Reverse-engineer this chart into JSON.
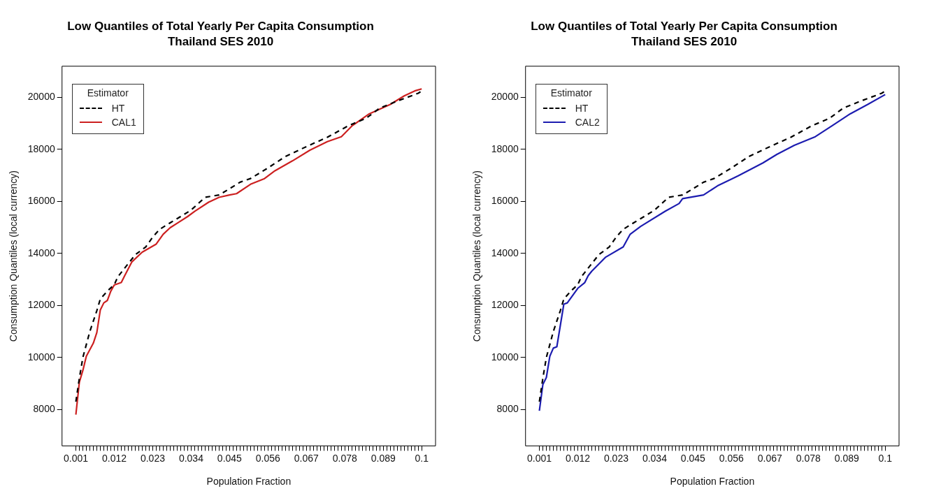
{
  "chart_data": [
    {
      "type": "line",
      "title": "Low Quantiles of Total Yearly Per Capita Consumption",
      "subtitle": "Thailand SES 2010",
      "xlabel": "Population Fraction",
      "ylabel": "Consumption Quantiles (local currency)",
      "legend_title": "Estimator",
      "legend": "top left",
      "marker": "none",
      "xlim": [
        -0.00296,
        0.10396
      ],
      "xticks": [
        0.001,
        {
          "value": 0.002,
          "label": null
        },
        {
          "value": 0.003,
          "label": null
        },
        {
          "value": 0.004,
          "label": null
        },
        {
          "value": 0.005,
          "label": null
        },
        {
          "value": 0.006,
          "label": null
        },
        {
          "value": 0.007,
          "label": null
        },
        {
          "value": 0.008,
          "label": null
        },
        {
          "value": 0.009,
          "label": null
        },
        {
          "value": 0.01,
          "label": null
        },
        {
          "value": 0.011,
          "label": null
        },
        0.012,
        {
          "value": 0.013,
          "label": null
        },
        {
          "value": 0.014,
          "label": null
        },
        {
          "value": 0.015,
          "label": null
        },
        {
          "value": 0.016,
          "label": null
        },
        {
          "value": 0.017,
          "label": null
        },
        {
          "value": 0.018,
          "label": null
        },
        {
          "value": 0.019,
          "label": null
        },
        {
          "value": 0.02,
          "label": null
        },
        {
          "value": 0.021,
          "label": null
        },
        {
          "value": 0.022,
          "label": null
        },
        0.023,
        {
          "value": 0.024,
          "label": null
        },
        {
          "value": 0.025,
          "label": null
        },
        {
          "value": 0.026,
          "label": null
        },
        {
          "value": 0.027,
          "label": null
        },
        {
          "value": 0.028,
          "label": null
        },
        {
          "value": 0.029,
          "label": null
        },
        {
          "value": 0.03,
          "label": null
        },
        {
          "value": 0.031,
          "label": null
        },
        {
          "value": 0.032,
          "label": null
        },
        {
          "value": 0.033,
          "label": null
        },
        0.034,
        {
          "value": 0.035,
          "label": null
        },
        {
          "value": 0.036,
          "label": null
        },
        {
          "value": 0.037,
          "label": null
        },
        {
          "value": 0.038,
          "label": null
        },
        {
          "value": 0.039,
          "label": null
        },
        {
          "value": 0.04,
          "label": null
        },
        {
          "value": 0.041,
          "label": null
        },
        {
          "value": 0.042,
          "label": null
        },
        {
          "value": 0.043,
          "label": null
        },
        {
          "value": 0.044,
          "label": null
        },
        0.045,
        {
          "value": 0.046,
          "label": null
        },
        {
          "value": 0.047,
          "label": null
        },
        {
          "value": 0.048,
          "label": null
        },
        {
          "value": 0.049,
          "label": null
        },
        {
          "value": 0.05,
          "label": null
        },
        {
          "value": 0.051,
          "label": null
        },
        {
          "value": 0.052,
          "label": null
        },
        {
          "value": 0.053,
          "label": null
        },
        {
          "value": 0.054,
          "label": null
        },
        {
          "value": 0.055,
          "label": null
        },
        0.056,
        {
          "value": 0.057,
          "label": null
        },
        {
          "value": 0.058,
          "label": null
        },
        {
          "value": 0.059,
          "label": null
        },
        {
          "value": 0.06,
          "label": null
        },
        {
          "value": 0.061,
          "label": null
        },
        {
          "value": 0.062,
          "label": null
        },
        {
          "value": 0.063,
          "label": null
        },
        {
          "value": 0.064,
          "label": null
        },
        {
          "value": 0.065,
          "label": null
        },
        {
          "value": 0.066,
          "label": null
        },
        0.067,
        {
          "value": 0.068,
          "label": null
        },
        {
          "value": 0.069,
          "label": null
        },
        {
          "value": 0.07,
          "label": null
        },
        {
          "value": 0.071,
          "label": null
        },
        {
          "value": 0.072,
          "label": null
        },
        {
          "value": 0.073,
          "label": null
        },
        {
          "value": 0.074,
          "label": null
        },
        {
          "value": 0.075,
          "label": null
        },
        {
          "value": 0.076,
          "label": null
        },
        {
          "value": 0.077,
          "label": null
        },
        0.078,
        {
          "value": 0.079,
          "label": null
        },
        {
          "value": 0.08,
          "label": null
        },
        {
          "value": 0.081,
          "label": null
        },
        {
          "value": 0.082,
          "label": null
        },
        {
          "value": 0.083,
          "label": null
        },
        {
          "value": 0.084,
          "label": null
        },
        {
          "value": 0.085,
          "label": null
        },
        {
          "value": 0.086,
          "label": null
        },
        {
          "value": 0.087,
          "label": null
        },
        {
          "value": 0.088,
          "label": null
        },
        0.089,
        {
          "value": 0.09,
          "label": null
        },
        {
          "value": 0.091,
          "label": null
        },
        {
          "value": 0.092,
          "label": null
        },
        {
          "value": 0.093,
          "label": null
        },
        {
          "value": 0.094,
          "label": null
        },
        {
          "value": 0.095,
          "label": null
        },
        {
          "value": 0.096,
          "label": null
        },
        {
          "value": 0.097,
          "label": null
        },
        {
          "value": 0.098,
          "label": null
        },
        {
          "value": 0.099,
          "label": null
        },
        0.1
      ],
      "ylim": [
        6600,
        21200
      ],
      "yticks": [
        8000,
        10000,
        12000,
        14000,
        16000,
        18000,
        20000
      ],
      "series": [
        {
          "name": "HT",
          "color": "#000000",
          "line_style": "dashed",
          "x": [
            0.001,
            0.002,
            0.003,
            0.005,
            0.006,
            0.007,
            0.008,
            0.01,
            0.012,
            0.013,
            0.018,
            0.021,
            0.023,
            0.025,
            0.028,
            0.031,
            0.034,
            0.038,
            0.042,
            0.045,
            0.048,
            0.051,
            0.056,
            0.061,
            0.067,
            0.073,
            0.079,
            0.084,
            0.088,
            0.093,
            0.099,
            0.1
          ],
          "values": [
            8300,
            9200,
            10000,
            11000,
            11400,
            11800,
            12250,
            12550,
            12800,
            13100,
            13950,
            14250,
            14630,
            14930,
            15180,
            15420,
            15670,
            16160,
            16250,
            16490,
            16740,
            16880,
            17290,
            17730,
            18110,
            18470,
            18910,
            19190,
            19590,
            19860,
            20160,
            20250
          ]
        },
        {
          "name": "CAL1",
          "color": "#cc2020",
          "line_style": "solid",
          "x": [
            0.001,
            0.002,
            0.003,
            0.004,
            0.006,
            0.007,
            0.008,
            0.009,
            0.01,
            0.011,
            0.012,
            0.014,
            0.015,
            0.017,
            0.02,
            0.024,
            0.026,
            0.028,
            0.033,
            0.035,
            0.039,
            0.042,
            0.045,
            0.047,
            0.051,
            0.055,
            0.058,
            0.063,
            0.068,
            0.073,
            0.077,
            0.08,
            0.085,
            0.091,
            0.095,
            0.098,
            0.1
          ],
          "values": [
            7800,
            9050,
            9500,
            10050,
            10550,
            10960,
            11830,
            12100,
            12190,
            12550,
            12790,
            12880,
            13150,
            13670,
            14050,
            14360,
            14740,
            14990,
            15420,
            15620,
            15970,
            16160,
            16250,
            16300,
            16660,
            16880,
            17180,
            17560,
            17970,
            18300,
            18490,
            18900,
            19370,
            19730,
            20060,
            20250,
            20330
          ]
        }
      ]
    },
    {
      "type": "line",
      "title": "Low Quantiles of Total Yearly Per Capita Consumption",
      "subtitle": "Thailand SES 2010",
      "xlabel": "Population Fraction",
      "ylabel": "Consumption Quantiles (local currency)",
      "legend_title": "Estimator",
      "legend": "top left",
      "marker": "none",
      "xlim": [
        -0.00296,
        0.10396
      ],
      "xticks": [
        0.001,
        {
          "value": 0.002,
          "label": null
        },
        {
          "value": 0.003,
          "label": null
        },
        {
          "value": 0.004,
          "label": null
        },
        {
          "value": 0.005,
          "label": null
        },
        {
          "value": 0.006,
          "label": null
        },
        {
          "value": 0.007,
          "label": null
        },
        {
          "value": 0.008,
          "label": null
        },
        {
          "value": 0.009,
          "label": null
        },
        {
          "value": 0.01,
          "label": null
        },
        {
          "value": 0.011,
          "label": null
        },
        0.012,
        {
          "value": 0.013,
          "label": null
        },
        {
          "value": 0.014,
          "label": null
        },
        {
          "value": 0.015,
          "label": null
        },
        {
          "value": 0.016,
          "label": null
        },
        {
          "value": 0.017,
          "label": null
        },
        {
          "value": 0.018,
          "label": null
        },
        {
          "value": 0.019,
          "label": null
        },
        {
          "value": 0.02,
          "label": null
        },
        {
          "value": 0.021,
          "label": null
        },
        {
          "value": 0.022,
          "label": null
        },
        0.023,
        {
          "value": 0.024,
          "label": null
        },
        {
          "value": 0.025,
          "label": null
        },
        {
          "value": 0.026,
          "label": null
        },
        {
          "value": 0.027,
          "label": null
        },
        {
          "value": 0.028,
          "label": null
        },
        {
          "value": 0.029,
          "label": null
        },
        {
          "value": 0.03,
          "label": null
        },
        {
          "value": 0.031,
          "label": null
        },
        {
          "value": 0.032,
          "label": null
        },
        {
          "value": 0.033,
          "label": null
        },
        0.034,
        {
          "value": 0.035,
          "label": null
        },
        {
          "value": 0.036,
          "label": null
        },
        {
          "value": 0.037,
          "label": null
        },
        {
          "value": 0.038,
          "label": null
        },
        {
          "value": 0.039,
          "label": null
        },
        {
          "value": 0.04,
          "label": null
        },
        {
          "value": 0.041,
          "label": null
        },
        {
          "value": 0.042,
          "label": null
        },
        {
          "value": 0.043,
          "label": null
        },
        {
          "value": 0.044,
          "label": null
        },
        0.045,
        {
          "value": 0.046,
          "label": null
        },
        {
          "value": 0.047,
          "label": null
        },
        {
          "value": 0.048,
          "label": null
        },
        {
          "value": 0.049,
          "label": null
        },
        {
          "value": 0.05,
          "label": null
        },
        {
          "value": 0.051,
          "label": null
        },
        {
          "value": 0.052,
          "label": null
        },
        {
          "value": 0.053,
          "label": null
        },
        {
          "value": 0.054,
          "label": null
        },
        {
          "value": 0.055,
          "label": null
        },
        0.056,
        {
          "value": 0.057,
          "label": null
        },
        {
          "value": 0.058,
          "label": null
        },
        {
          "value": 0.059,
          "label": null
        },
        {
          "value": 0.06,
          "label": null
        },
        {
          "value": 0.061,
          "label": null
        },
        {
          "value": 0.062,
          "label": null
        },
        {
          "value": 0.063,
          "label": null
        },
        {
          "value": 0.064,
          "label": null
        },
        {
          "value": 0.065,
          "label": null
        },
        {
          "value": 0.066,
          "label": null
        },
        0.067,
        {
          "value": 0.068,
          "label": null
        },
        {
          "value": 0.069,
          "label": null
        },
        {
          "value": 0.07,
          "label": null
        },
        {
          "value": 0.071,
          "label": null
        },
        {
          "value": 0.072,
          "label": null
        },
        {
          "value": 0.073,
          "label": null
        },
        {
          "value": 0.074,
          "label": null
        },
        {
          "value": 0.075,
          "label": null
        },
        {
          "value": 0.076,
          "label": null
        },
        {
          "value": 0.077,
          "label": null
        },
        0.078,
        {
          "value": 0.079,
          "label": null
        },
        {
          "value": 0.08,
          "label": null
        },
        {
          "value": 0.081,
          "label": null
        },
        {
          "value": 0.082,
          "label": null
        },
        {
          "value": 0.083,
          "label": null
        },
        {
          "value": 0.084,
          "label": null
        },
        {
          "value": 0.085,
          "label": null
        },
        {
          "value": 0.086,
          "label": null
        },
        {
          "value": 0.087,
          "label": null
        },
        {
          "value": 0.088,
          "label": null
        },
        0.089,
        {
          "value": 0.09,
          "label": null
        },
        {
          "value": 0.091,
          "label": null
        },
        {
          "value": 0.092,
          "label": null
        },
        {
          "value": 0.093,
          "label": null
        },
        {
          "value": 0.094,
          "label": null
        },
        {
          "value": 0.095,
          "label": null
        },
        {
          "value": 0.096,
          "label": null
        },
        {
          "value": 0.097,
          "label": null
        },
        {
          "value": 0.098,
          "label": null
        },
        {
          "value": 0.099,
          "label": null
        },
        0.1
      ],
      "ylim": [
        6600,
        21200
      ],
      "yticks": [
        8000,
        10000,
        12000,
        14000,
        16000,
        18000,
        20000
      ],
      "series": [
        {
          "name": "HT",
          "color": "#000000",
          "line_style": "dashed",
          "x": [
            0.001,
            0.002,
            0.003,
            0.005,
            0.006,
            0.007,
            0.008,
            0.01,
            0.012,
            0.013,
            0.018,
            0.021,
            0.023,
            0.025,
            0.028,
            0.031,
            0.034,
            0.038,
            0.042,
            0.045,
            0.048,
            0.051,
            0.056,
            0.061,
            0.067,
            0.073,
            0.079,
            0.084,
            0.088,
            0.093,
            0.099,
            0.1
          ],
          "values": [
            8300,
            9200,
            10000,
            11000,
            11400,
            11800,
            12250,
            12550,
            12800,
            13100,
            13950,
            14250,
            14630,
            14930,
            15180,
            15420,
            15670,
            16160,
            16250,
            16490,
            16740,
            16880,
            17290,
            17730,
            18110,
            18470,
            18910,
            19190,
            19590,
            19860,
            20160,
            20250
          ]
        },
        {
          "name": "CAL2",
          "color": "#1c1cb0",
          "line_style": "solid",
          "x": [
            0.001,
            0.002,
            0.003,
            0.004,
            0.005,
            0.006,
            0.007,
            0.008,
            0.009,
            0.012,
            0.014,
            0.015,
            0.016,
            0.02,
            0.025,
            0.027,
            0.03,
            0.037,
            0.041,
            0.042,
            0.048,
            0.052,
            0.058,
            0.065,
            0.069,
            0.074,
            0.08,
            0.085,
            0.09,
            0.095,
            0.1
          ],
          "values": [
            7950,
            8960,
            9230,
            10050,
            10360,
            10410,
            11230,
            12050,
            12100,
            12660,
            12880,
            13150,
            13320,
            13860,
            14250,
            14740,
            15040,
            15620,
            15920,
            16110,
            16250,
            16600,
            16990,
            17480,
            17810,
            18160,
            18490,
            18930,
            19370,
            19730,
            20110
          ]
        }
      ]
    }
  ]
}
